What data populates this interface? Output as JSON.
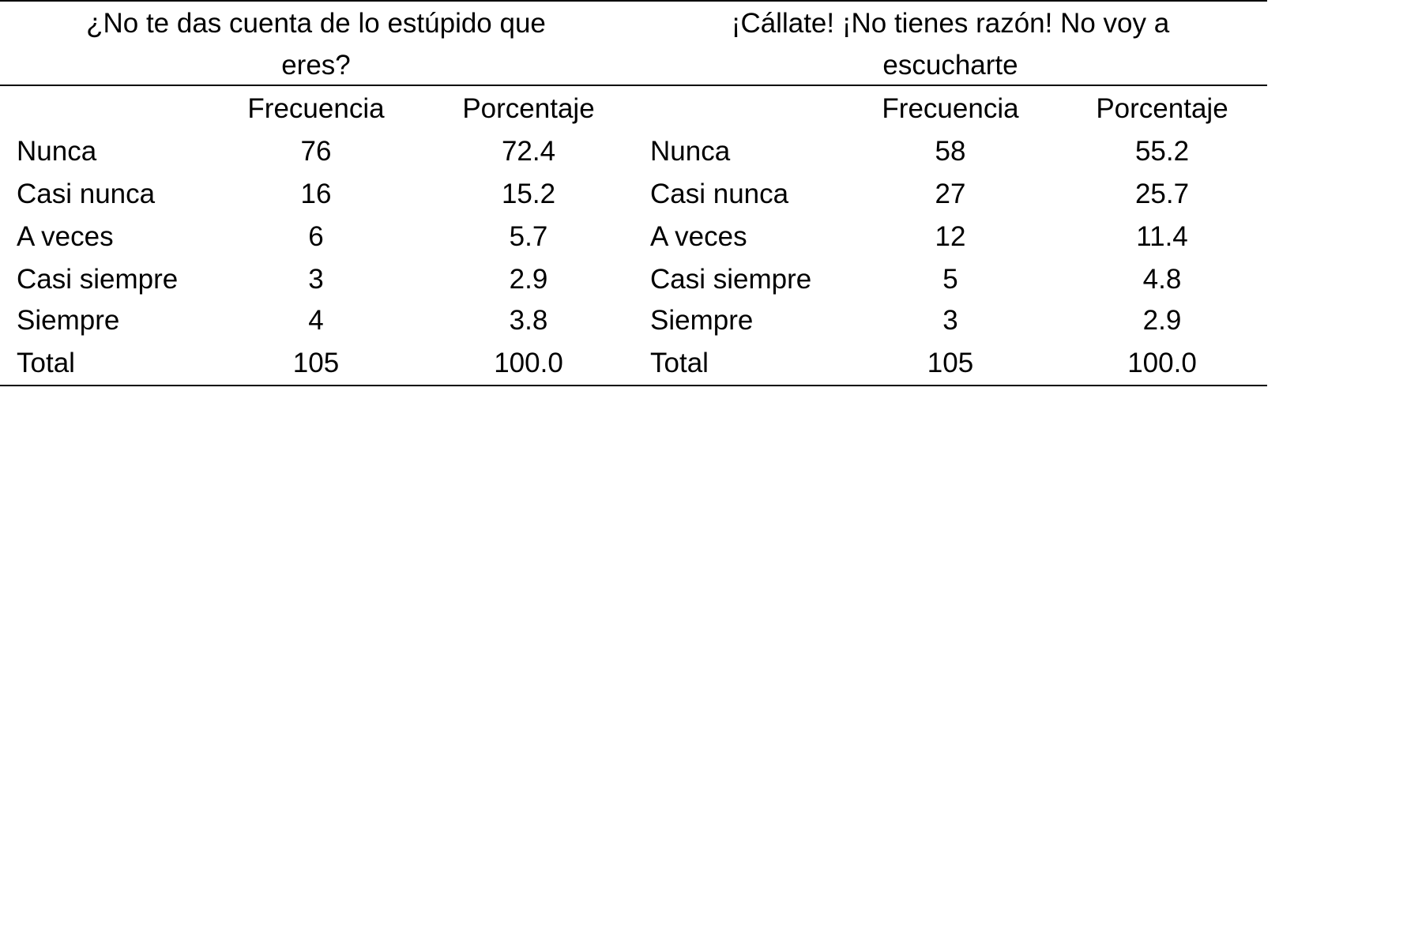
{
  "tables": [
    {
      "title_lines": [
        "¿No te das cuenta de lo estúpido que",
        "eres?"
      ],
      "headers": [
        "Frecuencia",
        "Porcentaje"
      ],
      "rows": [
        {
          "label": "Nunca",
          "freq": "76",
          "pct": "72.4"
        },
        {
          "label": "Casi nunca",
          "freq": "16",
          "pct": "15.2"
        },
        {
          "label": "A veces",
          "freq": "6",
          "pct": "5.7"
        },
        {
          "label": "Casi siempre",
          "freq": "3",
          "pct": "2.9"
        },
        {
          "label": "Siempre",
          "freq": "4",
          "pct": "3.8"
        },
        {
          "label": "Total",
          "freq": "105",
          "pct": "100.0"
        }
      ]
    },
    {
      "title_lines": [
        "¡Cállate! ¡No tienes razón! No voy a",
        "escucharte"
      ],
      "headers": [
        "Frecuencia",
        "Porcentaje"
      ],
      "rows": [
        {
          "label": "Nunca",
          "freq": "58",
          "pct": "55.2"
        },
        {
          "label": "Casi nunca",
          "freq": "27",
          "pct": "25.7"
        },
        {
          "label": "A veces",
          "freq": "12",
          "pct": "11.4"
        },
        {
          "label": "Casi siempre",
          "freq": "5",
          "pct": "4.8"
        },
        {
          "label": "Siempre",
          "freq": "3",
          "pct": "2.9"
        },
        {
          "label": "Total",
          "freq": "105",
          "pct": "100.0"
        }
      ]
    }
  ]
}
